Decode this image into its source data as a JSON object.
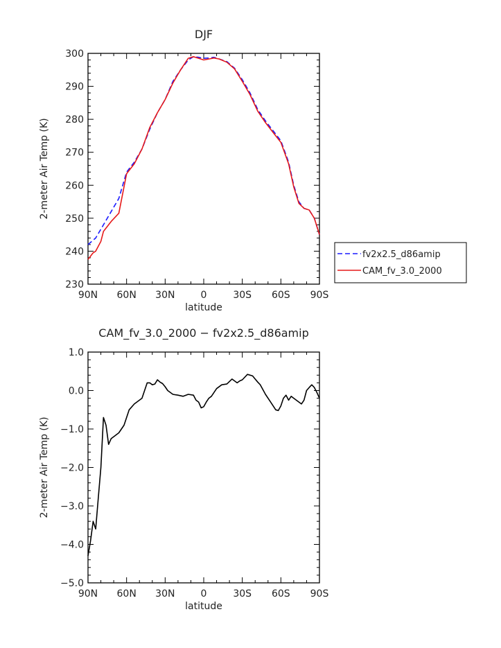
{
  "chart_data": [
    {
      "type": "line",
      "title": "DJF",
      "xlabel": "latitude",
      "ylabel": "2-meter Air Temp (K)",
      "x_tick_labels": [
        "90N",
        "60N",
        "30N",
        "0",
        "30S",
        "60S",
        "90S"
      ],
      "x_tick_values": [
        90,
        60,
        30,
        0,
        -30,
        -60,
        -90
      ],
      "xlim": [
        90,
        -90
      ],
      "y_tick_labels": [
        "230",
        "240",
        "250",
        "260",
        "270",
        "280",
        "290",
        "300"
      ],
      "ylim": [
        230,
        300
      ],
      "grid": false,
      "legend_position": "right, outside plot area",
      "series": [
        {
          "name": "fv2x2.5_d86amip",
          "color": "#1a1aff",
          "style": "dashed",
          "x": [
            90,
            84,
            78,
            72,
            66,
            60,
            54,
            48,
            42,
            36,
            30,
            24,
            18,
            12,
            8,
            4,
            0,
            -4,
            -8,
            -12,
            -18,
            -24,
            -30,
            -36,
            -42,
            -48,
            -54,
            -60,
            -66,
            -70,
            -74,
            -78,
            -82,
            -86,
            -90
          ],
          "y": [
            242,
            244,
            248,
            252,
            256,
            264,
            267,
            271,
            277,
            282,
            286,
            291.5,
            295,
            298,
            299,
            298.8,
            298.5,
            298.6,
            298.8,
            298.3,
            297.5,
            295.5,
            292,
            288,
            283,
            279.5,
            276.5,
            273.5,
            267,
            260,
            255,
            253,
            252.5,
            250,
            245
          ]
        },
        {
          "name": "CAM_fv_3.0_2000",
          "color": "#e61919",
          "style": "solid",
          "x": [
            90,
            86,
            84,
            80,
            78,
            72,
            66,
            60,
            54,
            48,
            42,
            36,
            30,
            24,
            18,
            12,
            8,
            4,
            0,
            -4,
            -8,
            -12,
            -18,
            -24,
            -30,
            -36,
            -42,
            -48,
            -54,
            -60,
            -66,
            -70,
            -74,
            -78,
            -82,
            -86,
            -90
          ],
          "y": [
            237.5,
            239.5,
            240,
            243,
            246,
            249,
            251.5,
            263.5,
            266.5,
            271,
            277.5,
            282,
            286,
            291,
            295,
            298.5,
            299,
            298.5,
            298,
            298.3,
            298.6,
            298.3,
            297.3,
            295.3,
            291.5,
            287.5,
            282.5,
            279,
            276,
            273,
            266.5,
            259.5,
            254.5,
            253,
            252.5,
            250,
            245
          ]
        }
      ]
    },
    {
      "type": "line",
      "title": "CAM_fv_3.0_2000 − fv2x2.5_d86amip",
      "xlabel": "latitude",
      "ylabel": "2-meter Air Temp (K)",
      "x_tick_labels": [
        "90N",
        "60N",
        "30N",
        "0",
        "30S",
        "60S",
        "90S"
      ],
      "x_tick_values": [
        90,
        60,
        30,
        0,
        -30,
        -60,
        -90
      ],
      "xlim": [
        90,
        -90
      ],
      "y_tick_labels": [
        "1.0",
        "0.0",
        "−1.0",
        "−2.0",
        "−3.0",
        "−4.0",
        "−5.0"
      ],
      "ylim": [
        -5,
        1
      ],
      "grid": false,
      "series": [
        {
          "color": "#000000",
          "style": "solid",
          "x": [
            90,
            88,
            86,
            84,
            82,
            80,
            78,
            76,
            74,
            72,
            70,
            66,
            62,
            58,
            54,
            52,
            48,
            44,
            42,
            40,
            38,
            36,
            34,
            32,
            30,
            28,
            24,
            20,
            16,
            12,
            8,
            6,
            4,
            2,
            0,
            -2,
            -4,
            -6,
            -10,
            -14,
            -18,
            -22,
            -24,
            -26,
            -28,
            -30,
            -34,
            -38,
            -40,
            -42,
            -44,
            -48,
            -52,
            -56,
            -58,
            -60,
            -62,
            -64,
            -66,
            -68,
            -70,
            -72,
            -74,
            -76,
            -78,
            -80,
            -82,
            -84,
            -86,
            -88,
            -90
          ],
          "y": [
            -4.3,
            -3.9,
            -3.4,
            -3.6,
            -2.8,
            -2.0,
            -0.7,
            -0.9,
            -1.4,
            -1.25,
            -1.2,
            -1.1,
            -0.9,
            -0.5,
            -0.35,
            -0.3,
            -0.2,
            0.2,
            0.2,
            0.15,
            0.17,
            0.28,
            0.22,
            0.18,
            0.1,
            0.0,
            -0.1,
            -0.12,
            -0.15,
            -0.1,
            -0.12,
            -0.25,
            -0.3,
            -0.45,
            -0.42,
            -0.3,
            -0.2,
            -0.15,
            0.05,
            0.15,
            0.17,
            0.3,
            0.25,
            0.2,
            0.25,
            0.28,
            0.42,
            0.38,
            0.3,
            0.22,
            0.15,
            -0.1,
            -0.3,
            -0.5,
            -0.52,
            -0.4,
            -0.2,
            -0.12,
            -0.25,
            -0.15,
            -0.2,
            -0.25,
            -0.3,
            -0.35,
            -0.25,
            0.0,
            0.08,
            0.15,
            0.08,
            -0.05,
            -0.2
          ]
        }
      ]
    }
  ]
}
